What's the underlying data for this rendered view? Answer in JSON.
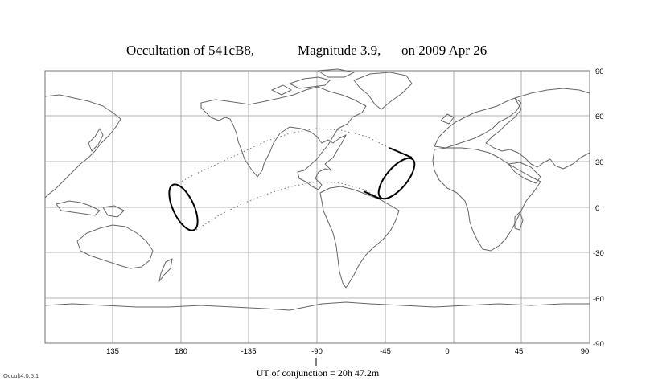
{
  "title": {
    "object": "Occultation  of  541cB8,",
    "magnitude": "Magnitude 3.9,",
    "date": "on  2009 Apr 26"
  },
  "axes": {
    "x_ticks": [
      "135",
      "180",
      "-135",
      "-90",
      "-45",
      "0",
      "45",
      "90"
    ],
    "y_ticks": [
      "90",
      "60",
      "30",
      "0",
      "-30",
      "-60",
      "-90"
    ]
  },
  "footer": {
    "conjunction_label": "UT of conjunction = 20h 47.2m",
    "version": "Occult4.0.5.1"
  },
  "colors": {
    "grid": "#9a9a9a",
    "coast": "#666666",
    "shadow": "#000000"
  }
}
